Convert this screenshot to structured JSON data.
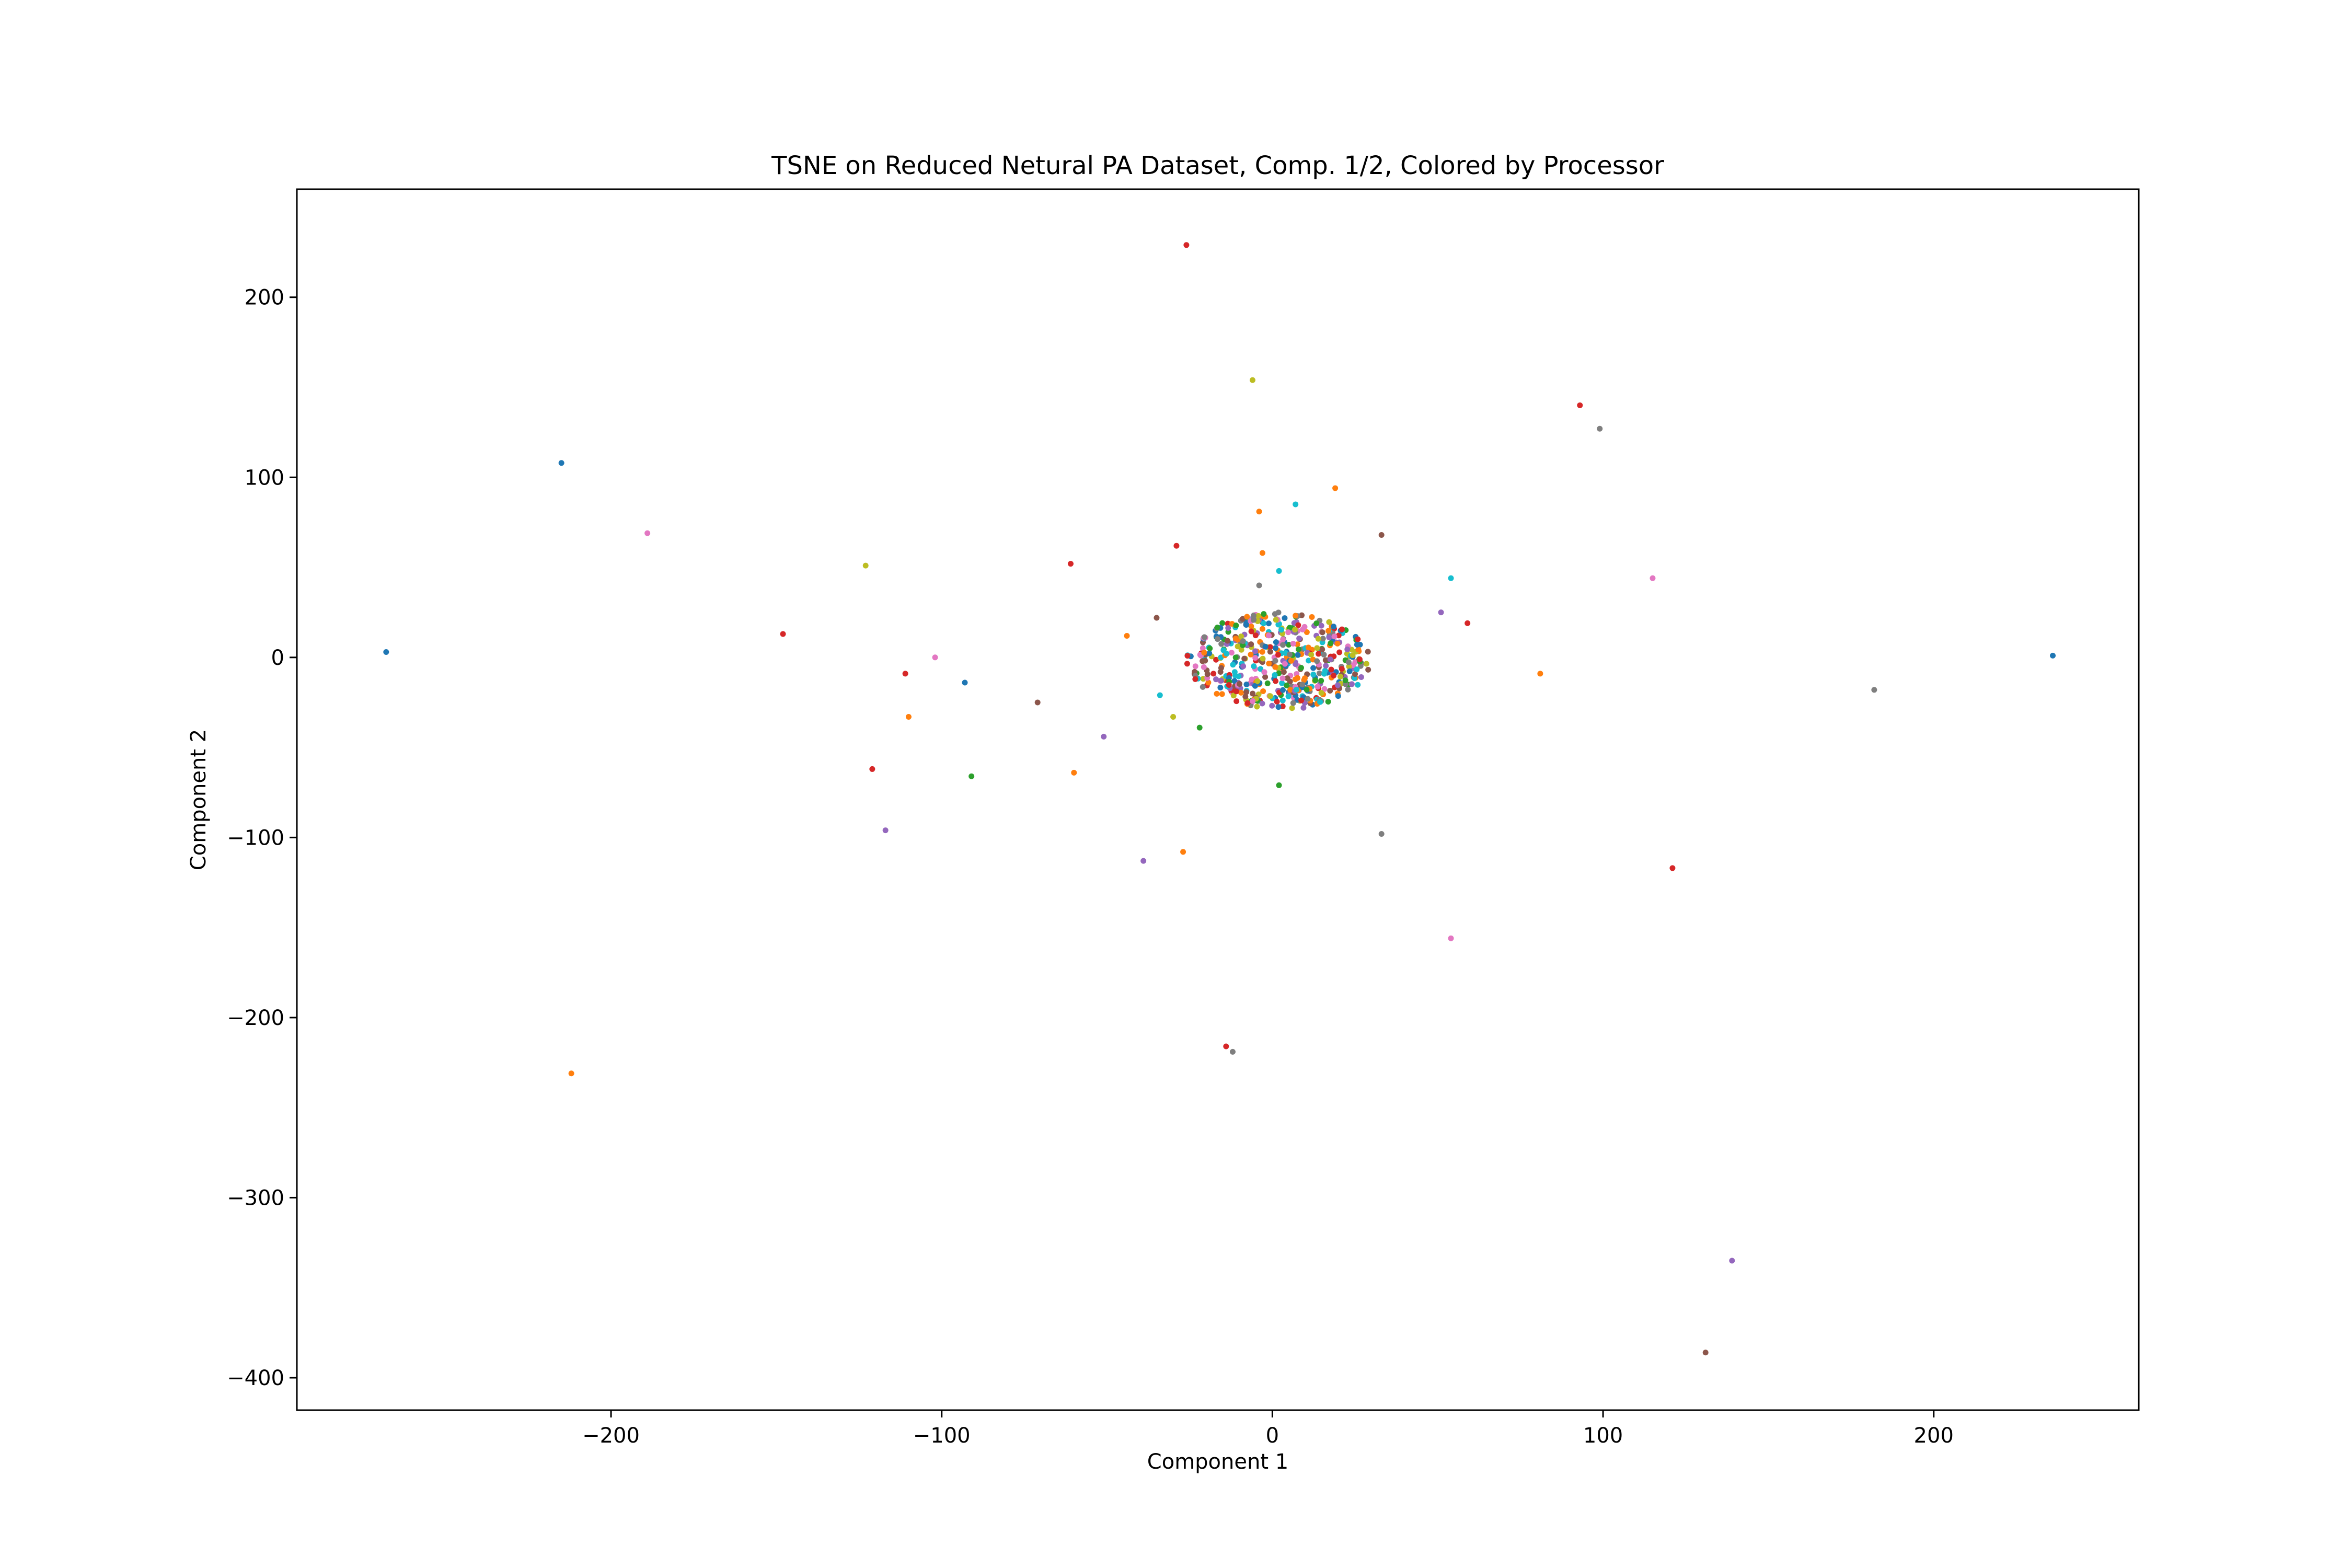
{
  "chart_data": {
    "type": "scatter",
    "title": "TSNE on Reduced Netural PA Dataset, Comp. 1/2, Colored by Processor",
    "xlabel": "Component 1",
    "ylabel": "Component 2",
    "xlim": [
      -295,
      262
    ],
    "ylim": [
      -418,
      260
    ],
    "xticks": [
      -200,
      -100,
      0,
      100,
      200
    ],
    "yticks": [
      200,
      100,
      0,
      -100,
      -200,
      -300,
      -400
    ],
    "grid": false,
    "legend": "none",
    "palette": [
      "#1f77b4",
      "#ff7f0e",
      "#2ca02c",
      "#d62728",
      "#9467bd",
      "#8c564b",
      "#e377c2",
      "#7f7f7f",
      "#bcbd22",
      "#17becf"
    ],
    "cluster": {
      "center": [
        2,
        -2
      ],
      "spread": [
        28,
        27
      ],
      "count": 520,
      "colors": 10
    },
    "points": [
      {
        "x": -268,
        "y": 3,
        "c": 0
      },
      {
        "x": -215,
        "y": 108,
        "c": 0
      },
      {
        "x": -189,
        "y": 69,
        "c": 6
      },
      {
        "x": -212,
        "y": -231,
        "c": 1
      },
      {
        "x": -148,
        "y": 13,
        "c": 3
      },
      {
        "x": -123,
        "y": 51,
        "c": 8
      },
      {
        "x": -121,
        "y": -62,
        "c": 3
      },
      {
        "x": -117,
        "y": -96,
        "c": 4
      },
      {
        "x": -111,
        "y": -9,
        "c": 3
      },
      {
        "x": -110,
        "y": -33,
        "c": 1
      },
      {
        "x": -102,
        "y": 0,
        "c": 6
      },
      {
        "x": -93,
        "y": -14,
        "c": 0
      },
      {
        "x": -91,
        "y": -66,
        "c": 2
      },
      {
        "x": -71,
        "y": -25,
        "c": 5
      },
      {
        "x": -61,
        "y": 52,
        "c": 3
      },
      {
        "x": -60,
        "y": -64,
        "c": 1
      },
      {
        "x": -51,
        "y": -44,
        "c": 4
      },
      {
        "x": -44,
        "y": 12,
        "c": 1
      },
      {
        "x": -39,
        "y": -113,
        "c": 4
      },
      {
        "x": -35,
        "y": 22,
        "c": 5
      },
      {
        "x": -34,
        "y": -21,
        "c": 9
      },
      {
        "x": -30,
        "y": -33,
        "c": 8
      },
      {
        "x": -29,
        "y": 62,
        "c": 3
      },
      {
        "x": -27,
        "y": -108,
        "c": 1
      },
      {
        "x": -26,
        "y": 229,
        "c": 3
      },
      {
        "x": -22,
        "y": -39,
        "c": 2
      },
      {
        "x": -14,
        "y": -216,
        "c": 3
      },
      {
        "x": -12,
        "y": -219,
        "c": 7
      },
      {
        "x": -6,
        "y": 154,
        "c": 8
      },
      {
        "x": -4,
        "y": 81,
        "c": 1
      },
      {
        "x": -4,
        "y": 40,
        "c": 7
      },
      {
        "x": -3,
        "y": 58,
        "c": 1
      },
      {
        "x": 2,
        "y": 48,
        "c": 9
      },
      {
        "x": 2,
        "y": -71,
        "c": 2
      },
      {
        "x": 7,
        "y": 85,
        "c": 9
      },
      {
        "x": 19,
        "y": 94,
        "c": 1
      },
      {
        "x": 33,
        "y": 68,
        "c": 5
      },
      {
        "x": 33,
        "y": -98,
        "c": 7
      },
      {
        "x": 51,
        "y": 25,
        "c": 4
      },
      {
        "x": 54,
        "y": 44,
        "c": 9
      },
      {
        "x": 54,
        "y": -156,
        "c": 6
      },
      {
        "x": 59,
        "y": 19,
        "c": 3
      },
      {
        "x": 81,
        "y": -9,
        "c": 1
      },
      {
        "x": 93,
        "y": 140,
        "c": 3
      },
      {
        "x": 99,
        "y": 127,
        "c": 7
      },
      {
        "x": 115,
        "y": 44,
        "c": 6
      },
      {
        "x": 121,
        "y": -117,
        "c": 3
      },
      {
        "x": 131,
        "y": -386,
        "c": 5
      },
      {
        "x": 139,
        "y": -335,
        "c": 4
      },
      {
        "x": 182,
        "y": -18,
        "c": 7
      },
      {
        "x": 236,
        "y": 1,
        "c": 0
      }
    ]
  }
}
